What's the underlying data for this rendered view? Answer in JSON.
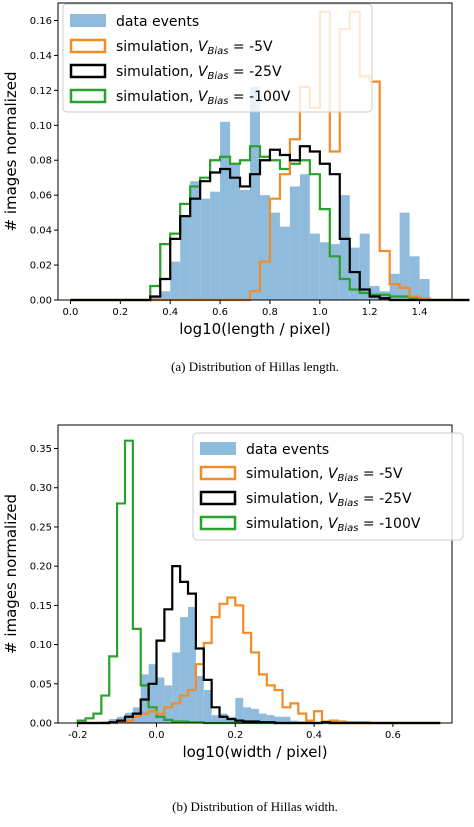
{
  "captions": {
    "a": "(a) Distribution of Hillas length.",
    "b": "(b) Distribution of Hillas width."
  },
  "legend": {
    "data": "data events",
    "sim_prefix": "simulation, ",
    "v": "V",
    "sub": "Bias",
    "eq5": " = -5V",
    "eq25": " = -25V",
    "eq100": " = -100V"
  },
  "colors": {
    "data": "#8fbbdc",
    "sim5": "#f28c28",
    "sim25": "#000000",
    "sim100": "#2ca02c"
  },
  "chart_data": [
    {
      "type": "bar",
      "xlabel": "log10(length / pixel)",
      "ylabel": "# images normalized",
      "xlim": [
        -0.05,
        1.53
      ],
      "ylim": [
        0,
        0.17
      ],
      "xticks": [
        0.0,
        0.2,
        0.4,
        0.6,
        0.8,
        1.0,
        1.2,
        1.4
      ],
      "xtick_labels": [
        "0.0",
        "0.2",
        "0.4",
        "0.6",
        "0.8",
        "1.0",
        "1.2",
        "1.4"
      ],
      "yticks": [
        0,
        0.02,
        0.04,
        0.06,
        0.08,
        0.1,
        0.12,
        0.14,
        0.16
      ],
      "ytick_labels": [
        "0.00",
        "0.02",
        "0.04",
        "0.06",
        "0.08",
        "0.10",
        "0.12",
        "0.14",
        "0.16"
      ],
      "legend_position": "top-left",
      "bins": {
        "start": 0.0,
        "width": 0.04,
        "data": [
          0,
          0,
          0,
          0,
          0,
          0,
          0,
          0,
          0.002,
          0.005,
          0.022,
          0.048,
          0.068,
          0.058,
          0.062,
          0.102,
          0.078,
          0.063,
          0.122,
          0.06,
          0.05,
          0.042,
          0.065,
          0.072,
          0.038,
          0.033,
          0.032,
          0.06,
          0.03,
          0.038,
          0.008,
          0.005,
          0.015,
          0.05,
          0.025,
          0.012,
          0,
          0,
          0,
          0
        ],
        "sim5": [
          0,
          0,
          0,
          0,
          0,
          0,
          0,
          0,
          0,
          0,
          0,
          0,
          0,
          0,
          0,
          0,
          0,
          0,
          0.005,
          0.022,
          0.058,
          0.072,
          0.092,
          0.122,
          0.11,
          0.165,
          0.085,
          0.155,
          0.165,
          0.128,
          0.125,
          0.028,
          0.009,
          0.007,
          0.002,
          0.001,
          0,
          0,
          0,
          0
        ],
        "sim25": [
          0,
          0,
          0,
          0,
          0,
          0,
          0,
          0,
          0.002,
          0.012,
          0.035,
          0.048,
          0.058,
          0.068,
          0.073,
          0.075,
          0.07,
          0.065,
          0.072,
          0.08,
          0.086,
          0.083,
          0.08,
          0.088,
          0.085,
          0.078,
          0.072,
          0.035,
          0.016,
          0.006,
          0.002,
          0.001,
          0,
          0,
          0,
          0,
          0,
          0,
          0,
          0
        ],
        "sim100": [
          0,
          0,
          0,
          0,
          0,
          0,
          0,
          0,
          0.008,
          0.032,
          0.038,
          0.055,
          0.065,
          0.07,
          0.08,
          0.082,
          0.078,
          0.08,
          0.088,
          0.082,
          0.08,
          0.075,
          0.078,
          0.08,
          0.072,
          0.052,
          0.025,
          0.012,
          0.006,
          0.004,
          0.003,
          0.003,
          0.002,
          0.002,
          0.001,
          0,
          0,
          0,
          0,
          0
        ]
      }
    },
    {
      "type": "bar",
      "xlabel": "log10(width / pixel)",
      "ylabel": "# images normalized",
      "xlim": [
        -0.25,
        0.75
      ],
      "ylim": [
        0,
        0.38
      ],
      "xticks": [
        -0.2,
        0.0,
        0.2,
        0.4,
        0.6
      ],
      "xtick_labels": [
        "-0.2",
        "0.0",
        "0.2",
        "0.4",
        "0.6"
      ],
      "yticks": [
        0,
        0.05,
        0.1,
        0.15,
        0.2,
        0.25,
        0.3,
        0.35
      ],
      "ytick_labels": [
        "0.00",
        "0.05",
        "0.10",
        "0.15",
        "0.20",
        "0.25",
        "0.30",
        "0.35"
      ],
      "legend_position": "top-right",
      "bins": {
        "start": -0.2,
        "width": 0.02,
        "data": [
          0,
          0,
          0,
          0.002,
          0.005,
          0.008,
          0.013,
          0.02,
          0.062,
          0.075,
          0.058,
          0.048,
          0.09,
          0.135,
          0.148,
          0.06,
          0.042,
          0.01,
          0.012,
          0.008,
          0.032,
          0.02,
          0.018,
          0.012,
          0.01,
          0.008,
          0.008,
          0.003,
          0.002,
          0.002,
          0,
          0,
          0.002,
          0,
          0,
          0,
          0,
          0,
          0,
          0,
          0,
          0,
          0,
          0,
          0,
          0
        ],
        "sim5": [
          0,
          0,
          0,
          0,
          0,
          0.002,
          0.003,
          0.008,
          0.012,
          0.015,
          0.012,
          0.02,
          0.025,
          0.035,
          0.042,
          0.075,
          0.102,
          0.135,
          0.152,
          0.16,
          0.15,
          0.115,
          0.09,
          0.062,
          0.048,
          0.042,
          0.02,
          0.025,
          0.012,
          0.003,
          0.015,
          0.002,
          0.003,
          0.002,
          0.001,
          0.001,
          0.001,
          0,
          0,
          0,
          0,
          0,
          0,
          0,
          0,
          0
        ],
        "sim25": [
          0,
          0,
          0,
          0,
          0.001,
          0.003,
          0.008,
          0.012,
          0.03,
          0.05,
          0.105,
          0.145,
          0.2,
          0.18,
          0.165,
          0.095,
          0.055,
          0.02,
          0.008,
          0.005,
          0.003,
          0.002,
          0.002,
          0.001,
          0.001,
          0,
          0,
          0,
          0,
          0,
          0,
          0.001,
          0,
          0,
          0,
          0,
          0,
          0,
          0,
          0,
          0,
          0,
          0,
          0,
          0,
          0
        ],
        "sim100": [
          0.003,
          0.006,
          0.012,
          0.035,
          0.085,
          0.28,
          0.36,
          0.12,
          0.048,
          0.02,
          0.008,
          0.004,
          0.002,
          0.002,
          0.001,
          0.001,
          0,
          0,
          0,
          0,
          0,
          0,
          0,
          0,
          0,
          0,
          0,
          0,
          0,
          0,
          0,
          0,
          0,
          0,
          0,
          0,
          0,
          0,
          0,
          0,
          0,
          0,
          0,
          0,
          0,
          0
        ]
      }
    }
  ]
}
